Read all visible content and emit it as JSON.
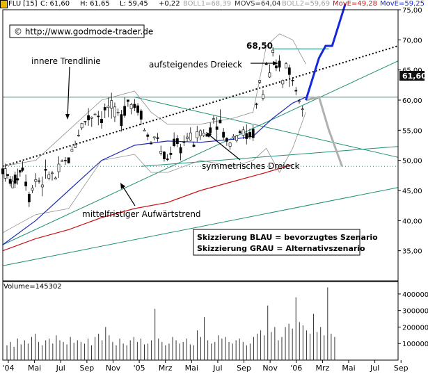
{
  "header": {
    "symbol": "FLU",
    "interval": "[15]",
    "close": "C: 61,60",
    "high": "H: 61,65",
    "low": "L: 59,45",
    "change": "+0,22",
    "boll1": "BOLL1=68,39",
    "movs": "MOVS=64,04",
    "boll2": "BOLL2=59,69",
    "move1": "MovE=49,28",
    "move2": "MovE=59,25"
  },
  "copyright": "© http://www.godmode-trader.de",
  "annotations": {
    "innere": "innere Trendlinie",
    "aufsteigend": "aufsteigendes Dreieck",
    "peak": "68,50",
    "symmetrisch": "symmetrisches Dreieck",
    "mittelfristig": "mittelfristiger Aufwärtstrend"
  },
  "legend_box": {
    "blue": "Skizzierung BLAU = bevorzugtes Szenario",
    "grey": "Skizzierung GRAU = Alternativszenario"
  },
  "volume_label": "Volume=145302",
  "colors": {
    "price": "#000000",
    "movs": "#1e2ab4",
    "move_red": "#cc1111",
    "trend_green": "#1f9078",
    "boll": "#909090",
    "scenario_blue": "#1428dc",
    "scenario_grey": "#b0b0b0",
    "move1_text": "#cc1111",
    "move2_text": "#1428dc",
    "boll_text": "#a0a0a0",
    "current_tag": "#111111"
  },
  "chart_data": {
    "type": "candlestick",
    "y_axis": {
      "min": 30,
      "max": 75,
      "ticks": [
        "35,00",
        "40,00",
        "45,00",
        "50,00",
        "55,00",
        "60,00",
        "65,00",
        "70,00",
        "75,00"
      ],
      "current_value": "61,60"
    },
    "volume_axis": {
      "min": 0,
      "max": 450000,
      "ticks": [
        "100000",
        "200000",
        "300000",
        "400000"
      ]
    },
    "x_labels": [
      "'04",
      "Mai",
      "Jul",
      "Sep",
      "Nov",
      "'05",
      "Mrz",
      "Mai",
      "Jul",
      "Sep",
      "Nov",
      "'06",
      "Mrz",
      "Mai",
      "Jul",
      "Sep"
    ],
    "price_path": [
      [
        0,
        48.5
      ],
      [
        3,
        46
      ],
      [
        6,
        49
      ],
      [
        8,
        44
      ],
      [
        10,
        47
      ],
      [
        12,
        46.5
      ],
      [
        14,
        48
      ],
      [
        16,
        47
      ],
      [
        18,
        49.5
      ],
      [
        20,
        50
      ],
      [
        22,
        53
      ],
      [
        24,
        56
      ],
      [
        26,
        57
      ],
      [
        28,
        58
      ],
      [
        30,
        57
      ],
      [
        32,
        59
      ],
      [
        34,
        58
      ],
      [
        36,
        57
      ],
      [
        38,
        60
      ],
      [
        40,
        59
      ],
      [
        42,
        58
      ],
      [
        43,
        55
      ],
      [
        45,
        53
      ],
      [
        47,
        54
      ],
      [
        48,
        51
      ],
      [
        50,
        50
      ],
      [
        52,
        53
      ],
      [
        54,
        52
      ],
      [
        56,
        54
      ],
      [
        58,
        53
      ],
      [
        60,
        55
      ],
      [
        62,
        54
      ],
      [
        64,
        57
      ],
      [
        66,
        56
      ],
      [
        68,
        53
      ],
      [
        70,
        54
      ],
      [
        72,
        55
      ],
      [
        74,
        54
      ],
      [
        76,
        54.5
      ],
      [
        77,
        59
      ],
      [
        78,
        63
      ],
      [
        79,
        61
      ],
      [
        80,
        66
      ],
      [
        81,
        64
      ],
      [
        82,
        67
      ],
      [
        83,
        65
      ],
      [
        84,
        66
      ],
      [
        85,
        63
      ],
      [
        86,
        66
      ],
      [
        87,
        65
      ],
      [
        88,
        63
      ],
      [
        89,
        62
      ],
      [
        90,
        61
      ],
      [
        91,
        60
      ],
      [
        92,
        61.6
      ]
    ],
    "movs_path": [
      [
        0,
        36
      ],
      [
        10,
        40
      ],
      [
        20,
        45
      ],
      [
        30,
        50
      ],
      [
        40,
        52.5
      ],
      [
        50,
        53.2
      ],
      [
        60,
        53
      ],
      [
        70,
        53.5
      ],
      [
        76,
        54
      ],
      [
        82,
        57
      ],
      [
        88,
        59.5
      ],
      [
        92,
        60.5
      ]
    ],
    "move_red_path": [
      [
        0,
        35
      ],
      [
        10,
        37
      ],
      [
        20,
        38.5
      ],
      [
        30,
        40.5
      ],
      [
        40,
        42
      ],
      [
        50,
        43
      ],
      [
        60,
        45
      ],
      [
        70,
        46.5
      ],
      [
        80,
        48
      ],
      [
        88,
        49.3
      ]
    ],
    "boll_upper": [
      [
        0,
        49
      ],
      [
        10,
        50
      ],
      [
        20,
        55
      ],
      [
        30,
        60
      ],
      [
        40,
        61.5
      ],
      [
        45,
        58
      ],
      [
        50,
        56
      ],
      [
        60,
        56
      ],
      [
        70,
        57
      ],
      [
        76,
        58
      ],
      [
        80,
        69
      ],
      [
        84,
        71
      ],
      [
        88,
        70
      ],
      [
        92,
        66
      ]
    ],
    "boll_lower": [
      [
        0,
        38
      ],
      [
        10,
        41
      ],
      [
        20,
        42
      ],
      [
        30,
        50
      ],
      [
        40,
        51
      ],
      [
        45,
        48
      ],
      [
        50,
        48
      ],
      [
        60,
        50
      ],
      [
        70,
        49
      ],
      [
        76,
        50
      ],
      [
        80,
        52
      ],
      [
        84,
        48
      ],
      [
        88,
        52
      ],
      [
        92,
        58
      ]
    ],
    "scenario_blue": [
      [
        92,
        60
      ],
      [
        96,
        67
      ],
      [
        98,
        69
      ],
      [
        100,
        69
      ],
      [
        104,
        76
      ]
    ],
    "scenario_grey": [
      [
        92,
        60
      ],
      [
        96,
        60.5
      ],
      [
        99,
        55
      ],
      [
        101,
        52
      ],
      [
        103,
        49
      ]
    ],
    "lines": {
      "inner_trend": [
        [
          0,
          49
        ],
        [
          120,
          69
        ]
      ],
      "horizontal_top": [
        [
          82,
          68.5
        ],
        [
          99,
          68.5
        ]
      ],
      "horizontal_support": [
        [
          0,
          60.5
        ],
        [
          120,
          60.5
        ]
      ],
      "sym_upper": [
        [
          40,
          60.5
        ],
        [
          120,
          50.5
        ]
      ],
      "sym_lower": [
        [
          42,
          49
        ],
        [
          120,
          52.3
        ]
      ],
      "dotted_support": [
        [
          0,
          49
        ],
        [
          120,
          49
        ]
      ],
      "trend_green_upper": [
        [
          0,
          36
        ],
        [
          120,
          66.5
        ]
      ],
      "trend_green_lower": [
        [
          0,
          32.5
        ],
        [
          120,
          45.5
        ]
      ]
    },
    "volume_bars": [
      90,
      110,
      80,
      130,
      95,
      120,
      100,
      140,
      160,
      110,
      90,
      120,
      130,
      100,
      150,
      120,
      110,
      95,
      140,
      105,
      120,
      110,
      100,
      130,
      90,
      140,
      160,
      120,
      200,
      150,
      110,
      90,
      130,
      100,
      90,
      120,
      140,
      110,
      130,
      95,
      100,
      120,
      310,
      130,
      110,
      90,
      100,
      140,
      120,
      100,
      110,
      130,
      95,
      90,
      180,
      140,
      260,
      120,
      100,
      110,
      150,
      130,
      140,
      110,
      100,
      120,
      130,
      110,
      90,
      100,
      140,
      160,
      180,
      150,
      330,
      170,
      200,
      120,
      140,
      200,
      220,
      190,
      380,
      230,
      210,
      180,
      160,
      280,
      170,
      200,
      150,
      440,
      160,
      140
    ]
  }
}
